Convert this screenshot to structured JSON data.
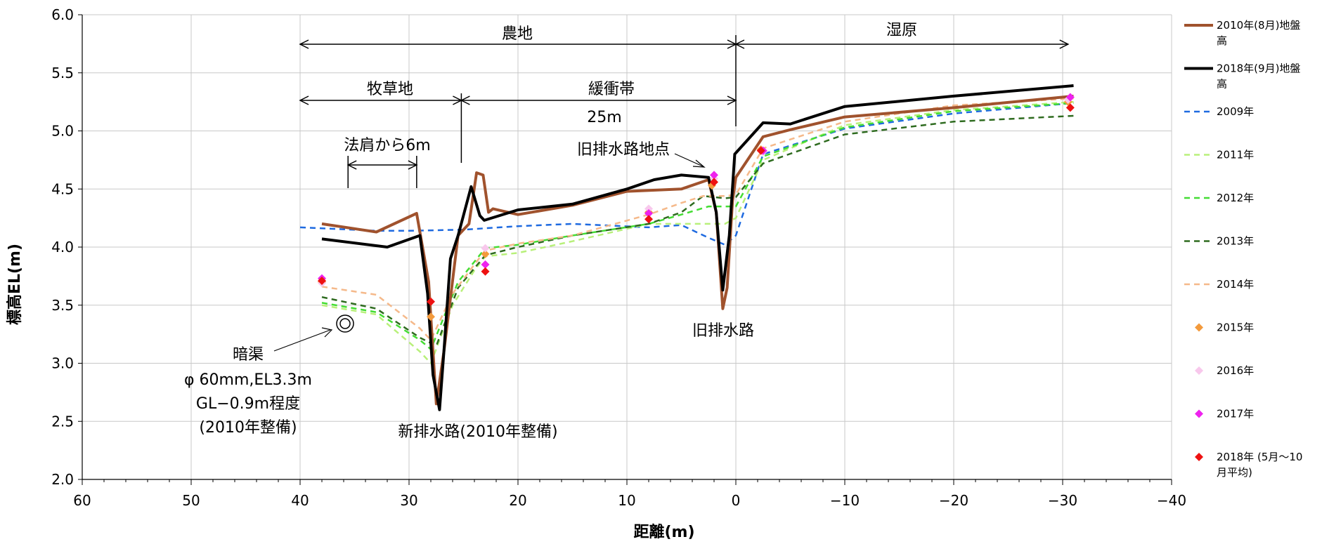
{
  "chart_data": {
    "type": "line",
    "title": "",
    "xlabel": "距離(m)",
    "ylabel": "標高EL(m)",
    "xlim": [
      60,
      -40
    ],
    "ylim": [
      2.0,
      6.0
    ],
    "x_ticks": [
      60,
      50,
      40,
      30,
      20,
      10,
      0,
      -10,
      -20,
      -30,
      -40
    ],
    "x_tick_labels": [
      "60",
      "50",
      "40",
      "30",
      "20",
      "10",
      "0",
      "−10",
      "−20",
      "−30",
      "−40"
    ],
    "y_ticks": [
      2.0,
      2.5,
      3.0,
      3.5,
      4.0,
      4.5,
      5.0,
      5.5,
      6.0
    ],
    "y_tick_labels": [
      "2.0",
      "2.5",
      "3.0",
      "3.5",
      "4.0",
      "4.5",
      "5.0",
      "5.5",
      "6.0"
    ],
    "grid": true,
    "legend_position": "right",
    "series": [
      {
        "name": "2010年(8月)地盤高",
        "legend_lines": [
          "2010年(8月)地盤",
          "高"
        ],
        "kind": "line",
        "color": "#a0522d",
        "dash": "solid",
        "width": 4,
        "points": [
          [
            38,
            4.2
          ],
          [
            33,
            4.13
          ],
          [
            29.3,
            4.29
          ],
          [
            28.2,
            3.7
          ],
          [
            27.5,
            2.65
          ],
          [
            26.8,
            3.1
          ],
          [
            25.5,
            4.1
          ],
          [
            24.5,
            4.2
          ],
          [
            23.8,
            4.64
          ],
          [
            23.2,
            4.62
          ],
          [
            22.7,
            4.3
          ],
          [
            22.3,
            4.33
          ],
          [
            20,
            4.28
          ],
          [
            15,
            4.36
          ],
          [
            10,
            4.48
          ],
          [
            5,
            4.5
          ],
          [
            2.5,
            4.58
          ],
          [
            1.8,
            4.3
          ],
          [
            1.2,
            3.47
          ],
          [
            0.8,
            3.65
          ],
          [
            0.3,
            4.4
          ],
          [
            0,
            4.6
          ],
          [
            -2.5,
            4.95
          ],
          [
            -5,
            5.01
          ],
          [
            -10,
            5.12
          ],
          [
            -20,
            5.2
          ],
          [
            -31,
            5.3
          ]
        ]
      },
      {
        "name": "2018年(9月)地盤高",
        "legend_lines": [
          "2018年(9月)地盤",
          "高"
        ],
        "kind": "line",
        "color": "#000000",
        "dash": "solid",
        "width": 4,
        "points": [
          [
            38,
            4.07
          ],
          [
            32,
            4.0
          ],
          [
            29,
            4.1
          ],
          [
            28.3,
            3.6
          ],
          [
            27.8,
            2.9
          ],
          [
            27.2,
            2.6
          ],
          [
            26.8,
            3.1
          ],
          [
            26.2,
            3.9
          ],
          [
            25.5,
            4.1
          ],
          [
            24.3,
            4.52
          ],
          [
            23.5,
            4.27
          ],
          [
            23.1,
            4.23
          ],
          [
            20,
            4.32
          ],
          [
            15,
            4.37
          ],
          [
            10,
            4.5
          ],
          [
            7.5,
            4.58
          ],
          [
            5,
            4.62
          ],
          [
            2.5,
            4.6
          ],
          [
            1.8,
            4.3
          ],
          [
            1.2,
            3.63
          ],
          [
            0.6,
            4.1
          ],
          [
            0.1,
            4.8
          ],
          [
            -2.5,
            5.07
          ],
          [
            -5,
            5.06
          ],
          [
            -10,
            5.21
          ],
          [
            -20,
            5.3
          ],
          [
            -31,
            5.39
          ]
        ]
      },
      {
        "name": "2009年",
        "legend_lines": [
          "2009年"
        ],
        "kind": "line",
        "color": "#1e6ae0",
        "dash": "8,6",
        "width": 2.5,
        "points": [
          [
            40,
            4.17
          ],
          [
            33,
            4.14
          ],
          [
            30,
            4.14
          ],
          [
            25,
            4.15
          ],
          [
            20,
            4.18
          ],
          [
            15,
            4.2
          ],
          [
            8,
            4.17
          ],
          [
            5,
            4.19
          ],
          [
            2.5,
            4.08
          ],
          [
            1,
            4.02
          ],
          [
            0,
            4.1
          ],
          [
            -2.5,
            4.8
          ],
          [
            -10,
            5.02
          ],
          [
            -20,
            5.15
          ],
          [
            -31,
            5.24
          ]
        ]
      },
      {
        "name": "2011年",
        "legend_lines": [
          "2011年"
        ],
        "kind": "line",
        "color": "#b8f07a",
        "dash": "8,6",
        "width": 2.5,
        "points": [
          [
            38,
            3.5
          ],
          [
            33,
            3.42
          ],
          [
            29,
            3.1
          ],
          [
            28,
            3.0
          ],
          [
            26,
            3.5
          ],
          [
            24,
            3.8
          ],
          [
            23,
            3.92
          ],
          [
            20,
            3.95
          ],
          [
            15,
            4.05
          ],
          [
            8,
            4.2
          ],
          [
            5,
            4.2
          ],
          [
            2.5,
            4.2
          ],
          [
            1,
            4.2
          ],
          [
            0,
            4.25
          ],
          [
            -2.5,
            4.75
          ],
          [
            -10,
            5.05
          ],
          [
            -20,
            5.18
          ],
          [
            -31,
            5.25
          ]
        ]
      },
      {
        "name": "2012年",
        "legend_lines": [
          "2012年"
        ],
        "kind": "line",
        "color": "#44dd33",
        "dash": "8,6",
        "width": 2.5,
        "points": [
          [
            38,
            3.52
          ],
          [
            33,
            3.44
          ],
          [
            29,
            3.2
          ],
          [
            28,
            3.12
          ],
          [
            25.5,
            3.7
          ],
          [
            23,
            3.99
          ],
          [
            20,
            4.02
          ],
          [
            15,
            4.1
          ],
          [
            8,
            4.2
          ],
          [
            5,
            4.28
          ],
          [
            2.5,
            4.35
          ],
          [
            1,
            4.35
          ],
          [
            0,
            4.35
          ],
          [
            -2.5,
            4.78
          ],
          [
            -10,
            5.03
          ],
          [
            -20,
            5.17
          ],
          [
            -31,
            5.24
          ]
        ]
      },
      {
        "name": "2013年",
        "legend_lines": [
          "2013年"
        ],
        "kind": "line",
        "color": "#2e6b1f",
        "dash": "8,6",
        "width": 2.5,
        "points": [
          [
            38,
            3.57
          ],
          [
            33,
            3.47
          ],
          [
            29,
            3.22
          ],
          [
            27.5,
            3.15
          ],
          [
            25.5,
            3.65
          ],
          [
            23,
            3.93
          ],
          [
            20,
            4.0
          ],
          [
            15,
            4.1
          ],
          [
            8,
            4.2
          ],
          [
            5,
            4.3
          ],
          [
            3,
            4.44
          ],
          [
            1,
            4.42
          ],
          [
            0,
            4.43
          ],
          [
            -2.5,
            4.72
          ],
          [
            -10,
            4.97
          ],
          [
            -20,
            5.08
          ],
          [
            -31,
            5.13
          ]
        ]
      },
      {
        "name": "2014年",
        "legend_lines": [
          "2014年"
        ],
        "kind": "line",
        "color": "#f5b98a",
        "dash": "8,6",
        "width": 2.5,
        "points": [
          [
            38,
            3.66
          ],
          [
            33,
            3.59
          ],
          [
            29,
            3.3
          ],
          [
            28,
            3.2
          ],
          [
            26,
            3.6
          ],
          [
            24,
            3.85
          ],
          [
            23,
            3.97
          ],
          [
            20,
            4.03
          ],
          [
            15,
            4.1
          ],
          [
            8,
            4.28
          ],
          [
            5,
            4.38
          ],
          [
            3,
            4.44
          ],
          [
            1,
            4.44
          ],
          [
            0,
            4.45
          ],
          [
            -2.5,
            4.85
          ],
          [
            -10,
            5.08
          ],
          [
            -20,
            5.22
          ],
          [
            -31,
            5.28
          ]
        ]
      },
      {
        "name": "2015年",
        "legend_lines": [
          "2015年"
        ],
        "kind": "scatter",
        "color": "#f39a3c",
        "points": [
          [
            38,
            3.7
          ],
          [
            28,
            3.4
          ],
          [
            23,
            3.94
          ],
          [
            8,
            4.3
          ],
          [
            2.2,
            4.53
          ],
          [
            -2.3,
            4.84
          ],
          [
            -30.5,
            5.25
          ]
        ]
      },
      {
        "name": "2016年",
        "legend_lines": [
          "2016年"
        ],
        "kind": "scatter",
        "color": "#f8c8ec",
        "points": [
          [
            38,
            3.69
          ],
          [
            23,
            3.99
          ],
          [
            8,
            4.33
          ],
          [
            2,
            4.59
          ],
          [
            -2.5,
            4.82
          ],
          [
            -30.5,
            5.27
          ]
        ]
      },
      {
        "name": "2017年",
        "legend_lines": [
          "2017年"
        ],
        "kind": "scatter",
        "color": "#ee22ee",
        "points": [
          [
            38,
            3.73
          ],
          [
            23,
            3.85
          ],
          [
            8,
            4.29
          ],
          [
            2,
            4.62
          ],
          [
            -2.5,
            4.83
          ],
          [
            -30.7,
            5.29
          ]
        ]
      },
      {
        "name": "2018年 (5月～10月平均)",
        "legend_lines": [
          "2018年 (5月～10",
          "月平均)"
        ],
        "kind": "scatter",
        "color": "#ee1111",
        "points": [
          [
            38,
            3.71
          ],
          [
            28,
            3.53
          ],
          [
            23,
            3.79
          ],
          [
            8,
            4.24
          ],
          [
            2,
            4.56
          ],
          [
            -2.3,
            4.83
          ],
          [
            -30.7,
            5.2
          ]
        ]
      }
    ],
    "annotations": {
      "nouchi": "農地",
      "shitsugen": "湿原",
      "bokusouchi": "牧草地",
      "kanshoutai": "緩衝帯",
      "kanshoutai_width": "25m",
      "norikata": "法肩から6m",
      "old_drain_point": "旧排水路地点",
      "old_drain": "旧排水路",
      "new_drain": "新排水路(2010年整備)",
      "ankyo_lines": [
        "暗渠",
        "φ 60mm,EL3.3m",
        "GL−0.9m程度",
        "(2010年整備)"
      ]
    }
  }
}
